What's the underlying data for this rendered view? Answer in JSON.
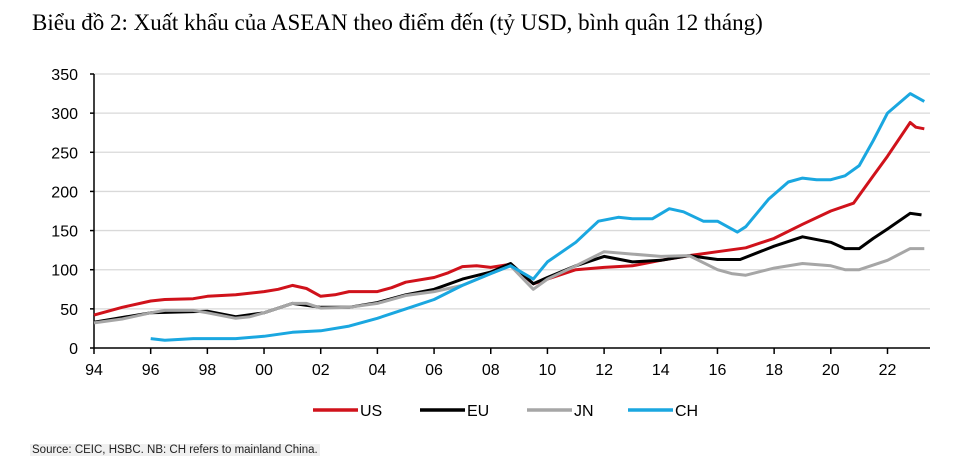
{
  "title": "Biểu đồ 2: Xuất khẩu của ASEAN theo điểm đến (tỷ USD, bình quân 12 tháng)",
  "source": "Source: CEIC, HSBC. NB: CH refers to mainland China.",
  "chart_data": {
    "type": "line",
    "title": "Biểu đồ 2: Xuất khẩu của ASEAN theo điểm đến (tỷ USD, bình quân 12 tháng)",
    "xlabel": "",
    "ylabel": "",
    "xlim": [
      1994,
      2023.5
    ],
    "ylim": [
      0,
      350
    ],
    "yticks": [
      0,
      50,
      100,
      150,
      200,
      250,
      300,
      350
    ],
    "xticks": [
      1994,
      1996,
      1998,
      2000,
      2002,
      2004,
      2006,
      2008,
      2010,
      2012,
      2014,
      2016,
      2018,
      2020,
      2022
    ],
    "xtick_labels": [
      "94",
      "96",
      "98",
      "00",
      "02",
      "04",
      "06",
      "08",
      "10",
      "12",
      "14",
      "16",
      "18",
      "20",
      "22"
    ],
    "grid": "horizontal",
    "legend_position": "bottom",
    "series": [
      {
        "name": "US",
        "color": "#d0121b",
        "points": [
          [
            1994,
            42
          ],
          [
            1995,
            52
          ],
          [
            1996,
            60
          ],
          [
            1996.5,
            62
          ],
          [
            1997.5,
            63
          ],
          [
            1998,
            66
          ],
          [
            1999,
            68
          ],
          [
            2000,
            72
          ],
          [
            2000.5,
            75
          ],
          [
            2001,
            80
          ],
          [
            2001.5,
            76
          ],
          [
            2002,
            66
          ],
          [
            2002.5,
            68
          ],
          [
            2003,
            72
          ],
          [
            2004,
            72
          ],
          [
            2004.5,
            77
          ],
          [
            2005,
            84
          ],
          [
            2006,
            90
          ],
          [
            2006.5,
            96
          ],
          [
            2007,
            104
          ],
          [
            2007.5,
            105
          ],
          [
            2008,
            103
          ],
          [
            2008.7,
            107
          ],
          [
            2009.5,
            82
          ],
          [
            2010,
            88
          ],
          [
            2011,
            100
          ],
          [
            2012,
            103
          ],
          [
            2013,
            105
          ],
          [
            2014,
            112
          ],
          [
            2015,
            118
          ],
          [
            2016,
            123
          ],
          [
            2017,
            128
          ],
          [
            2018,
            140
          ],
          [
            2019,
            158
          ],
          [
            2020,
            175
          ],
          [
            2020.8,
            185
          ],
          [
            2021.5,
            220
          ],
          [
            2022,
            245
          ],
          [
            2022.8,
            288
          ],
          [
            2023,
            282
          ],
          [
            2023.3,
            280
          ]
        ]
      },
      {
        "name": "EU",
        "color": "#000000",
        "points": [
          [
            1994,
            33
          ],
          [
            1996,
            45
          ],
          [
            1998,
            47
          ],
          [
            1999,
            40
          ],
          [
            2000,
            45
          ],
          [
            2001,
            57
          ],
          [
            2002,
            52
          ],
          [
            2003,
            52
          ],
          [
            2004,
            58
          ],
          [
            2005,
            68
          ],
          [
            2006,
            75
          ],
          [
            2007,
            88
          ],
          [
            2008,
            97
          ],
          [
            2008.7,
            108
          ],
          [
            2009.5,
            82
          ],
          [
            2010,
            90
          ],
          [
            2011,
            105
          ],
          [
            2012,
            117
          ],
          [
            2013,
            110
          ],
          [
            2014,
            112
          ],
          [
            2015,
            118
          ],
          [
            2016,
            113
          ],
          [
            2016.8,
            113
          ],
          [
            2018,
            130
          ],
          [
            2019,
            142
          ],
          [
            2020,
            135
          ],
          [
            2020.5,
            127
          ],
          [
            2021,
            127
          ],
          [
            2021.5,
            140
          ],
          [
            2022,
            152
          ],
          [
            2022.8,
            172
          ],
          [
            2023.2,
            170
          ]
        ]
      },
      {
        "name": "JN",
        "color": "#a6a6a6",
        "points": [
          [
            1994,
            32
          ],
          [
            1995,
            37
          ],
          [
            1996,
            45
          ],
          [
            1996.5,
            48
          ],
          [
            1997.5,
            48
          ],
          [
            1998,
            45
          ],
          [
            1999,
            38
          ],
          [
            1999.5,
            40
          ],
          [
            2000,
            45
          ],
          [
            2001,
            57
          ],
          [
            2001.5,
            57
          ],
          [
            2002,
            51
          ],
          [
            2003,
            52
          ],
          [
            2004,
            57
          ],
          [
            2005,
            67
          ],
          [
            2006,
            72
          ],
          [
            2007,
            80
          ],
          [
            2008,
            95
          ],
          [
            2008.7,
            105
          ],
          [
            2009.5,
            75
          ],
          [
            2010,
            88
          ],
          [
            2011,
            105
          ],
          [
            2012,
            123
          ],
          [
            2013,
            120
          ],
          [
            2014,
            117
          ],
          [
            2015,
            118
          ],
          [
            2016,
            100
          ],
          [
            2016.5,
            95
          ],
          [
            2017,
            93
          ],
          [
            2018,
            102
          ],
          [
            2019,
            108
          ],
          [
            2020,
            105
          ],
          [
            2020.5,
            100
          ],
          [
            2021,
            100
          ],
          [
            2022,
            112
          ],
          [
            2022.8,
            127
          ],
          [
            2023.3,
            127
          ]
        ]
      },
      {
        "name": "CH",
        "color": "#1aa7e0",
        "points": [
          [
            1996,
            12
          ],
          [
            1996.5,
            10
          ],
          [
            1997.5,
            12
          ],
          [
            1998,
            12
          ],
          [
            1999,
            12
          ],
          [
            2000,
            15
          ],
          [
            2001,
            20
          ],
          [
            2002,
            22
          ],
          [
            2003,
            28
          ],
          [
            2004,
            38
          ],
          [
            2005,
            50
          ],
          [
            2006,
            62
          ],
          [
            2007,
            80
          ],
          [
            2008,
            95
          ],
          [
            2008.7,
            105
          ],
          [
            2009.5,
            88
          ],
          [
            2010,
            110
          ],
          [
            2011,
            135
          ],
          [
            2011.8,
            162
          ],
          [
            2012.5,
            167
          ],
          [
            2013,
            165
          ],
          [
            2013.7,
            165
          ],
          [
            2014.3,
            178
          ],
          [
            2014.8,
            174
          ],
          [
            2015.5,
            162
          ],
          [
            2016,
            162
          ],
          [
            2016.7,
            148
          ],
          [
            2017,
            155
          ],
          [
            2017.8,
            190
          ],
          [
            2018.5,
            212
          ],
          [
            2019,
            217
          ],
          [
            2019.5,
            215
          ],
          [
            2020,
            215
          ],
          [
            2020.5,
            220
          ],
          [
            2021,
            233
          ],
          [
            2021.5,
            265
          ],
          [
            2022,
            300
          ],
          [
            2022.8,
            325
          ],
          [
            2023.3,
            315
          ]
        ]
      }
    ]
  }
}
